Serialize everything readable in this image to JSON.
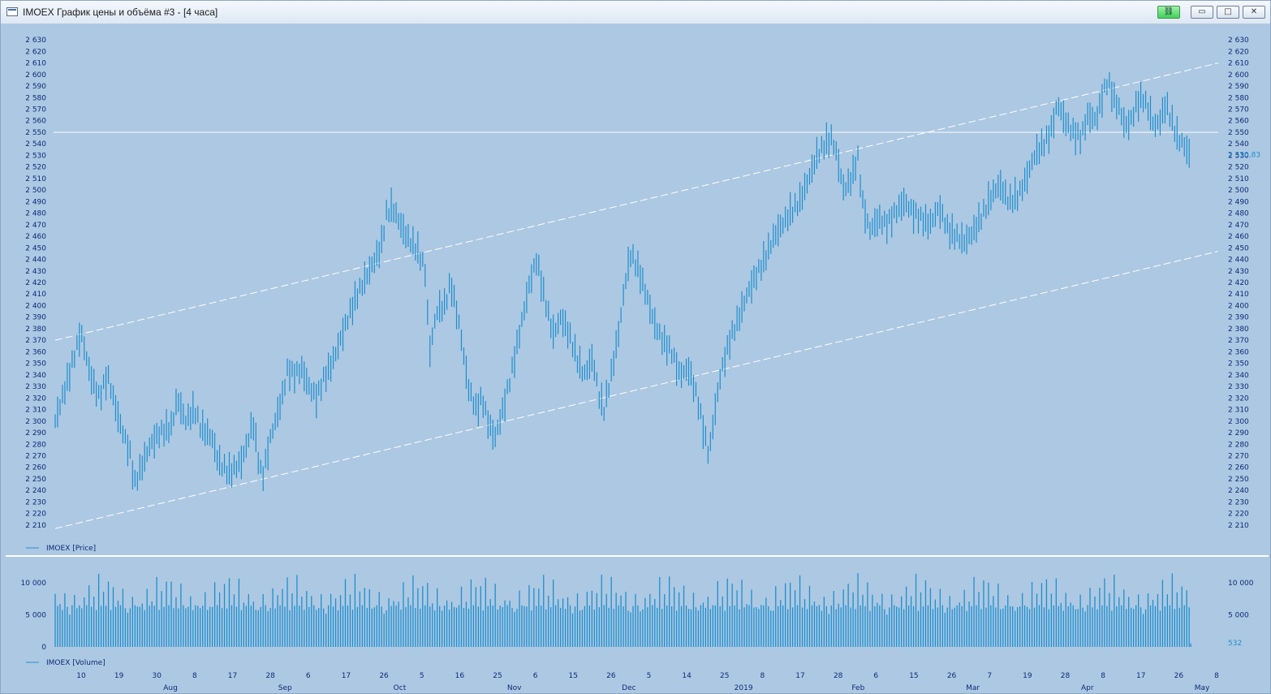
{
  "window": {
    "title": "IMOEX График цены и объёма #3 - [4 часа]",
    "buttons": {
      "minimize": "▭",
      "maximize": "□",
      "close": "✕",
      "link": "⛓"
    }
  },
  "colors": {
    "background": "#adc8e2",
    "series": "#1e8fce",
    "text": "#0f2a78",
    "guide": "#ffffff"
  },
  "chart_data": [
    {
      "type": "bar",
      "subtype": "ohlc",
      "legend": "IMOEX [Price]",
      "legend_position": "bottom-left",
      "ylim": [
        2205,
        2635
      ],
      "y_ticks": [
        2630,
        2620,
        2610,
        2600,
        2590,
        2580,
        2570,
        2560,
        2550,
        2540,
        2530,
        2520,
        2510,
        2500,
        2490,
        2480,
        2470,
        2460,
        2450,
        2440,
        2430,
        2420,
        2410,
        2400,
        2390,
        2380,
        2370,
        2360,
        2350,
        2340,
        2330,
        2320,
        2310,
        2300,
        2290,
        2280,
        2270,
        2260,
        2250,
        2240,
        2230,
        2220,
        2210
      ],
      "y_tick_labels": [
        "2 630",
        "2 620",
        "2 610",
        "2 600",
        "2 590",
        "2 580",
        "2 570",
        "2 560",
        "2 550",
        "2 540",
        "2 530",
        "2 520",
        "2 510",
        "2 500",
        "2 490",
        "2 480",
        "2 470",
        "2 460",
        "2 450",
        "2 440",
        "2 430",
        "2 420",
        "2 410",
        "2 400",
        "2 390",
        "2 380",
        "2 370",
        "2 360",
        "2 350",
        "2 340",
        "2 330",
        "2 320",
        "2 310",
        "2 300",
        "2 290",
        "2 280",
        "2 270",
        "2 260",
        "2 250",
        "2 240",
        "2 230",
        "2 220",
        "2 210"
      ],
      "last_value": 2530.83,
      "last_value_label": "2 530,83",
      "horizontal_line": 2550,
      "channel_lines": [
        {
          "from": [
            0,
            2370
          ],
          "to": [
            1,
            2610
          ]
        },
        {
          "from": [
            0,
            2207
          ],
          "to": [
            1,
            2447
          ]
        }
      ],
      "anchors": [
        [
          0,
          2300
        ],
        [
          0.012,
          2340
        ],
        [
          0.02,
          2370
        ],
        [
          0.022,
          2378
        ],
        [
          0.03,
          2340
        ],
        [
          0.038,
          2320
        ],
        [
          0.045,
          2340
        ],
        [
          0.055,
          2300
        ],
        [
          0.065,
          2270
        ],
        [
          0.068,
          2245
        ],
        [
          0.074,
          2260
        ],
        [
          0.082,
          2280
        ],
        [
          0.09,
          2290
        ],
        [
          0.1,
          2295
        ],
        [
          0.105,
          2320
        ],
        [
          0.112,
          2300
        ],
        [
          0.12,
          2310
        ],
        [
          0.125,
          2295
        ],
        [
          0.135,
          2285
        ],
        [
          0.14,
          2265
        ],
        [
          0.15,
          2255
        ],
        [
          0.16,
          2265
        ],
        [
          0.165,
          2280
        ],
        [
          0.17,
          2300
        ],
        [
          0.175,
          2265
        ],
        [
          0.178,
          2250
        ],
        [
          0.185,
          2285
        ],
        [
          0.195,
          2320
        ],
        [
          0.2,
          2345
        ],
        [
          0.205,
          2340
        ],
        [
          0.212,
          2345
        ],
        [
          0.218,
          2330
        ],
        [
          0.225,
          2320
        ],
        [
          0.23,
          2335
        ],
        [
          0.238,
          2350
        ],
        [
          0.245,
          2370
        ],
        [
          0.252,
          2390
        ],
        [
          0.26,
          2410
        ],
        [
          0.27,
          2430
        ],
        [
          0.28,
          2450
        ],
        [
          0.285,
          2480
        ],
        [
          0.29,
          2485
        ],
        [
          0.297,
          2470
        ],
        [
          0.302,
          2460
        ],
        [
          0.31,
          2450
        ],
        [
          0.315,
          2440
        ],
        [
          0.318,
          2430
        ],
        [
          0.322,
          2360
        ],
        [
          0.328,
          2395
        ],
        [
          0.335,
          2400
        ],
        [
          0.34,
          2420
        ],
        [
          0.348,
          2380
        ],
        [
          0.355,
          2330
        ],
        [
          0.362,
          2310
        ],
        [
          0.367,
          2320
        ],
        [
          0.372,
          2300
        ],
        [
          0.378,
          2285
        ],
        [
          0.385,
          2310
        ],
        [
          0.392,
          2340
        ],
        [
          0.4,
          2380
        ],
        [
          0.408,
          2420
        ],
        [
          0.414,
          2440
        ],
        [
          0.42,
          2410
        ],
        [
          0.428,
          2375
        ],
        [
          0.435,
          2390
        ],
        [
          0.442,
          2375
        ],
        [
          0.45,
          2350
        ],
        [
          0.455,
          2340
        ],
        [
          0.462,
          2355
        ],
        [
          0.468,
          2320
        ],
        [
          0.472,
          2310
        ],
        [
          0.478,
          2340
        ],
        [
          0.485,
          2380
        ],
        [
          0.49,
          2420
        ],
        [
          0.495,
          2445
        ],
        [
          0.502,
          2430
        ],
        [
          0.508,
          2410
        ],
        [
          0.515,
          2385
        ],
        [
          0.522,
          2370
        ],
        [
          0.53,
          2360
        ],
        [
          0.537,
          2340
        ],
        [
          0.545,
          2345
        ],
        [
          0.552,
          2320
        ],
        [
          0.558,
          2290
        ],
        [
          0.562,
          2270
        ],
        [
          0.566,
          2300
        ],
        [
          0.572,
          2340
        ],
        [
          0.58,
          2370
        ],
        [
          0.588,
          2390
        ],
        [
          0.595,
          2410
        ],
        [
          0.602,
          2425
        ],
        [
          0.61,
          2440
        ],
        [
          0.618,
          2460
        ],
        [
          0.625,
          2470
        ],
        [
          0.632,
          2480
        ],
        [
          0.64,
          2490
        ],
        [
          0.648,
          2510
        ],
        [
          0.655,
          2530
        ],
        [
          0.662,
          2540
        ],
        [
          0.668,
          2545
        ],
        [
          0.672,
          2530
        ],
        [
          0.678,
          2500
        ],
        [
          0.685,
          2510
        ],
        [
          0.69,
          2530
        ],
        [
          0.694,
          2490
        ],
        [
          0.7,
          2465
        ],
        [
          0.708,
          2475
        ],
        [
          0.715,
          2470
        ],
        [
          0.722,
          2480
        ],
        [
          0.73,
          2490
        ],
        [
          0.738,
          2480
        ],
        [
          0.745,
          2475
        ],
        [
          0.752,
          2470
        ],
        [
          0.76,
          2485
        ],
        [
          0.768,
          2465
        ],
        [
          0.775,
          2460
        ],
        [
          0.782,
          2455
        ],
        [
          0.79,
          2465
        ],
        [
          0.798,
          2480
        ],
        [
          0.805,
          2495
        ],
        [
          0.812,
          2505
        ],
        [
          0.82,
          2490
        ],
        [
          0.828,
          2495
        ],
        [
          0.835,
          2510
        ],
        [
          0.842,
          2530
        ],
        [
          0.85,
          2540
        ],
        [
          0.856,
          2550
        ],
        [
          0.862,
          2575
        ],
        [
          0.868,
          2560
        ],
        [
          0.875,
          2550
        ],
        [
          0.882,
          2545
        ],
        [
          0.888,
          2565
        ],
        [
          0.895,
          2560
        ],
        [
          0.9,
          2580
        ],
        [
          0.905,
          2595
        ],
        [
          0.91,
          2580
        ],
        [
          0.915,
          2570
        ],
        [
          0.92,
          2555
        ],
        [
          0.925,
          2560
        ],
        [
          0.93,
          2575
        ],
        [
          0.935,
          2580
        ],
        [
          0.94,
          2570
        ],
        [
          0.945,
          2555
        ],
        [
          0.95,
          2560
        ],
        [
          0.955,
          2575
        ],
        [
          0.96,
          2560
        ],
        [
          0.965,
          2545
        ],
        [
          0.97,
          2540
        ],
        [
          0.975,
          2531
        ]
      ]
    },
    {
      "type": "bar",
      "legend": "IMOEX [Volume]",
      "legend_position": "bottom-left",
      "ylim": [
        0,
        12500
      ],
      "y_ticks": [
        10000,
        5000,
        0
      ],
      "y_tick_labels": [
        "10 000",
        "5 000",
        "0"
      ],
      "typical_range": [
        5000,
        11500
      ],
      "last_value_label": "532",
      "x_day_labels": [
        "10",
        "19",
        "30",
        "8",
        "17",
        "28",
        "6",
        "17",
        "26",
        "5",
        "16",
        "25",
        "6",
        "15",
        "26",
        "5",
        "14",
        "25",
        "8",
        "17",
        "28",
        "6",
        "15",
        "26",
        "7",
        "19",
        "28",
        "8",
        "17",
        "26",
        "8"
      ],
      "x_month_labels": [
        "Aug",
        "Sep",
        "Oct",
        "Nov",
        "Dec",
        "2019",
        "Feb",
        "Mar",
        "Apr",
        "May"
      ]
    }
  ]
}
